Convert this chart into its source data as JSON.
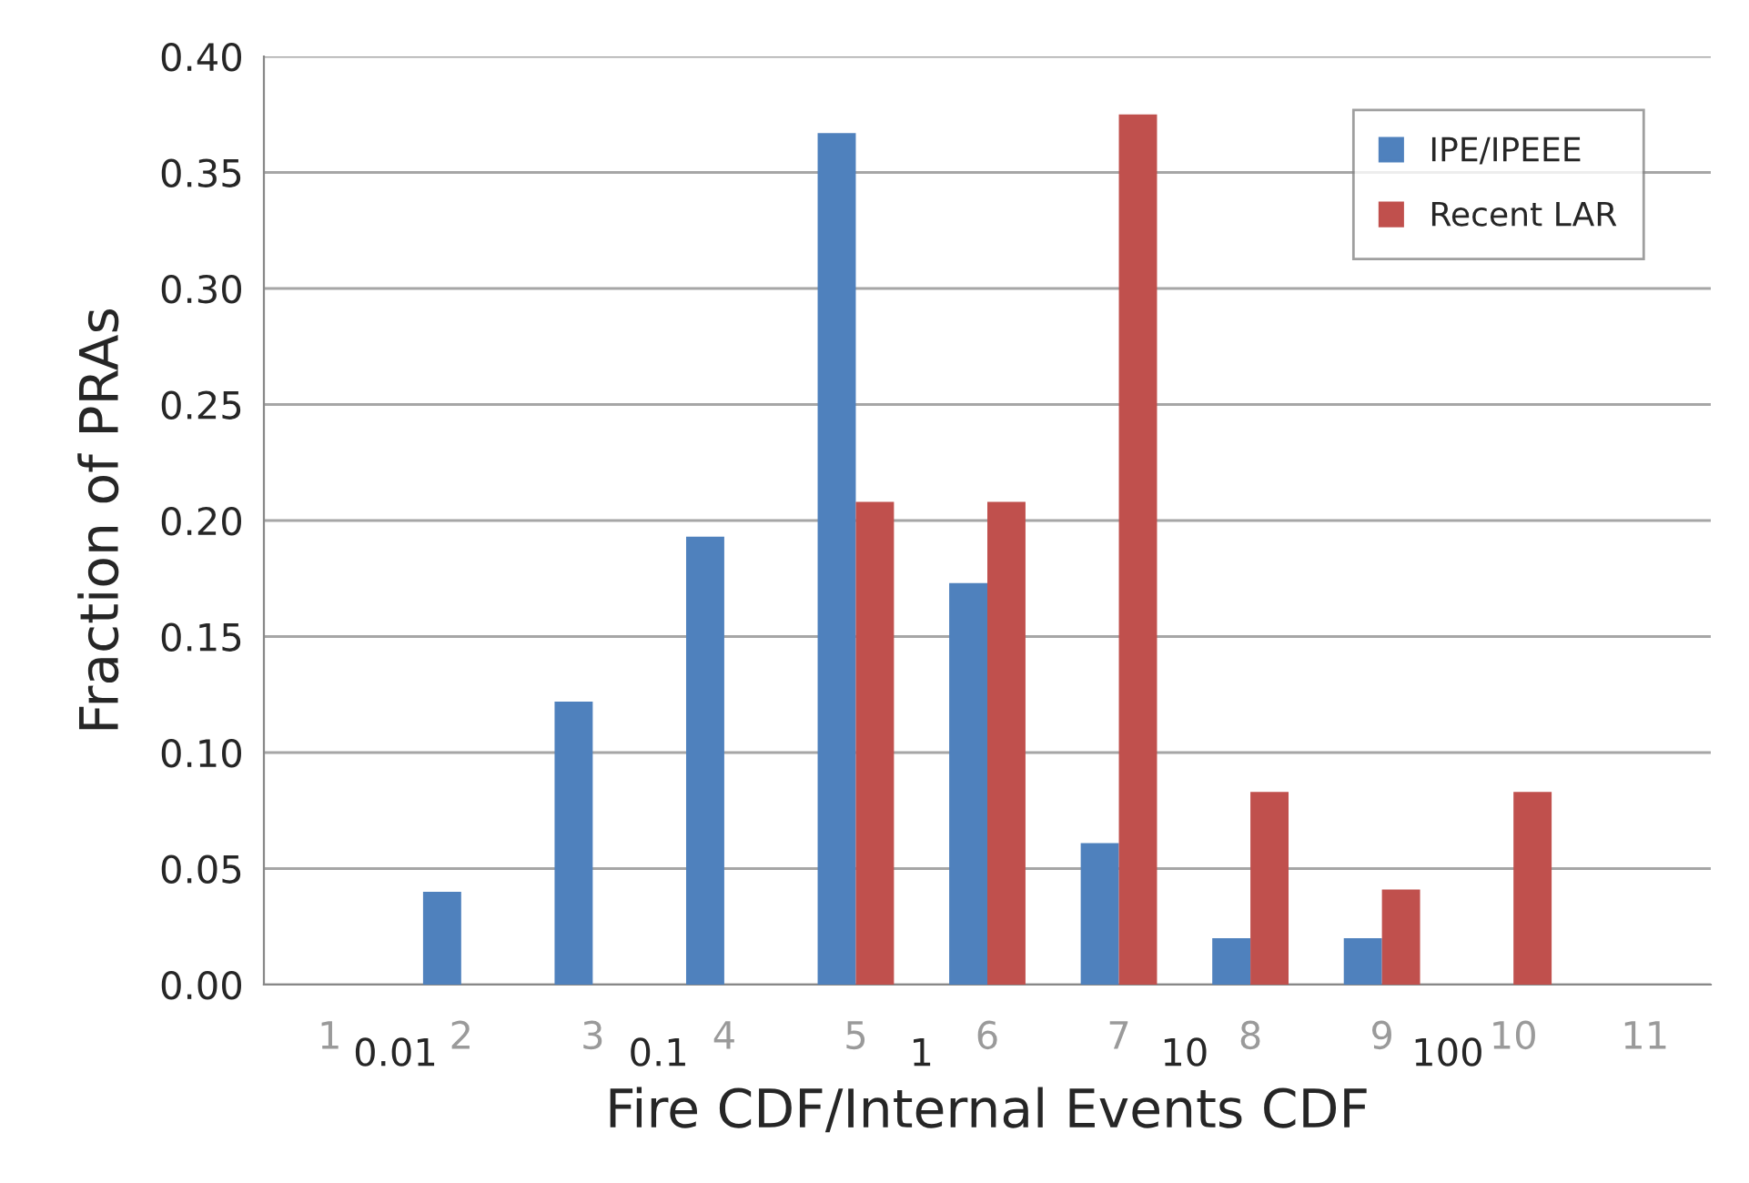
{
  "chart_data": {
    "type": "bar",
    "xlabel": "Fire CDF/Internal Events CDF",
    "ylabel": "Fraction of PRAs",
    "categories": [
      "1",
      "2",
      "3",
      "4",
      "5",
      "6",
      "7",
      "8",
      "9",
      "10",
      "11"
    ],
    "series": [
      {
        "name": "IPE/IPEEE",
        "color": "#4f81bd",
        "values": [
          0,
          0.04,
          0.122,
          0.193,
          0.367,
          0.173,
          0.061,
          0.02,
          0.02,
          0,
          0
        ]
      },
      {
        "name": "Recent LAR",
        "color": "#c0504d",
        "values": [
          0,
          0,
          0,
          0,
          0.208,
          0.208,
          0.375,
          0.083,
          0.041,
          0.083,
          0
        ]
      }
    ],
    "ylim": [
      0,
      0.4
    ],
    "yticks": [
      {
        "value": 0,
        "label": "0.00"
      },
      {
        "value": 0.05,
        "label": "0.05"
      },
      {
        "value": 0.1,
        "label": "0.10"
      },
      {
        "value": 0.15,
        "label": "0.15"
      },
      {
        "value": 0.2,
        "label": "0.20"
      },
      {
        "value": 0.25,
        "label": "0.25"
      },
      {
        "value": 0.3,
        "label": "0.30"
      },
      {
        "value": 0.35,
        "label": "0.35"
      },
      {
        "value": 0.4,
        "label": "0.40"
      }
    ],
    "annotations": [
      "0.01",
      "0.1",
      "1",
      "10",
      "100"
    ],
    "grid": "y",
    "legend": "top right"
  }
}
